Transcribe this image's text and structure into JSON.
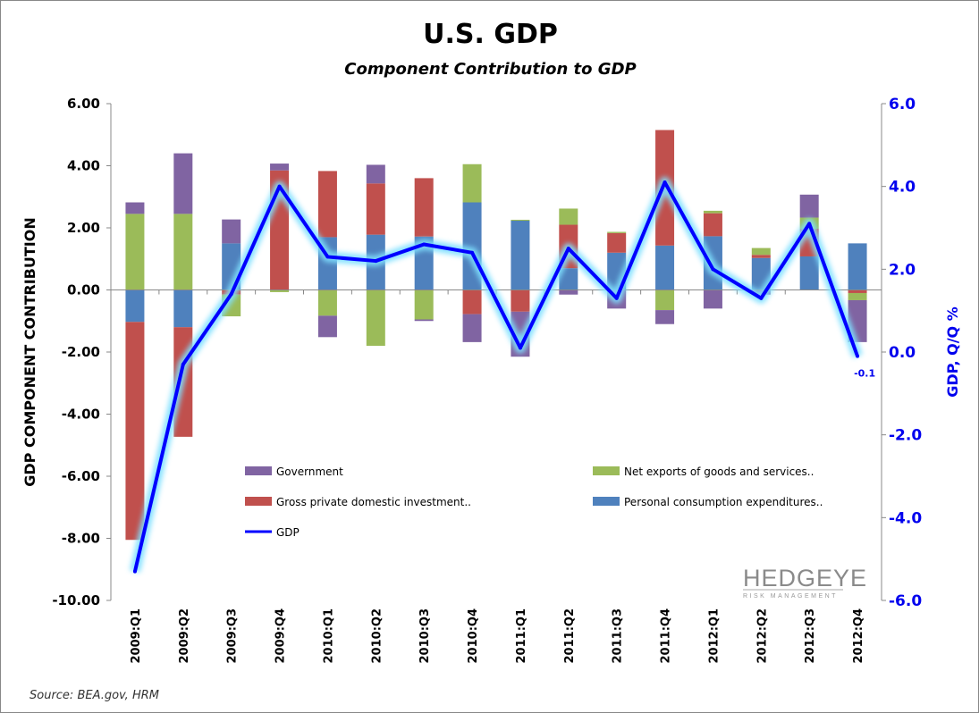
{
  "title": "U.S. GDP",
  "subtitle": "Component Contribution to GDP",
  "source": "Source:  BEA.gov, HRM",
  "logo": {
    "text": "HEDGEYE",
    "tagline": "RISK MANAGEMENT"
  },
  "chart_data": {
    "type": "bar",
    "stacked": true,
    "categories": [
      "2009:Q1",
      "2009:Q2",
      "2009:Q3",
      "2009:Q4",
      "2010:Q1",
      "2010:Q2",
      "2010:Q3",
      "2010:Q4",
      "2011:Q1",
      "2011:Q2",
      "2011:Q3",
      "2011:Q4",
      "2012:Q1",
      "2012:Q2",
      "2012:Q3",
      "2012:Q4"
    ],
    "ylabel": "GDP COMPONENT CONTRIBUTION",
    "ylim": [
      -10,
      6
    ],
    "yticks": [
      "6.00",
      "4.00",
      "2.00",
      "0.00",
      "-2.00",
      "-4.00",
      "-6.00",
      "-8.00",
      "-10.00"
    ],
    "y2label": "GDP, Q/Q %",
    "y2lim": [
      -6,
      6
    ],
    "y2ticks": [
      "6.0",
      "4.0",
      "2.0",
      "0.0",
      "-2.0",
      "-4.0",
      "-6.0"
    ],
    "grid": false,
    "legend_placement": "inside-bottom",
    "series": [
      {
        "name": "Personal consumption  expenditures..",
        "color": "#4f81bd",
        "values": [
          -1.03,
          -1.2,
          1.5,
          0,
          1.7,
          1.78,
          1.72,
          2.82,
          2.23,
          0.7,
          1.2,
          1.43,
          1.73,
          1.03,
          1.08,
          1.5
        ]
      },
      {
        "name": " Gross private domestic investment..",
        "color": "#c0504d",
        "values": [
          -7.02,
          -3.53,
          -0.15,
          3.85,
          2.13,
          1.65,
          1.88,
          -0.78,
          -0.7,
          1.4,
          0.63,
          3.72,
          0.74,
          0.1,
          0.89,
          -0.1
        ]
      },
      {
        "name": "Net exports of goods and services..",
        "color": "#9bbb59",
        "values": [
          2.45,
          2.45,
          -0.7,
          -0.07,
          -0.83,
          -1.8,
          -0.95,
          1.23,
          0.03,
          0.52,
          0.04,
          -0.65,
          0.08,
          0.22,
          0.36,
          -0.23
        ]
      },
      {
        "name": "Government",
        "color": "#8064a2",
        "values": [
          0.37,
          1.95,
          0.77,
          0.22,
          -0.69,
          0.6,
          -0.05,
          -0.9,
          -1.45,
          -0.15,
          -0.6,
          -0.45,
          -0.6,
          -0.15,
          0.74,
          -1.35
        ]
      }
    ],
    "line": {
      "name": "GDP",
      "color": "#0000ff",
      "axis": "right",
      "values": [
        -5.3,
        -0.3,
        1.4,
        4.0,
        2.3,
        2.2,
        2.6,
        2.4,
        0.1,
        2.5,
        1.3,
        4.1,
        2.0,
        1.3,
        3.1,
        -0.1
      ]
    },
    "annotations": [
      {
        "category": "2012:Q4",
        "text": "-0.1"
      }
    ]
  }
}
